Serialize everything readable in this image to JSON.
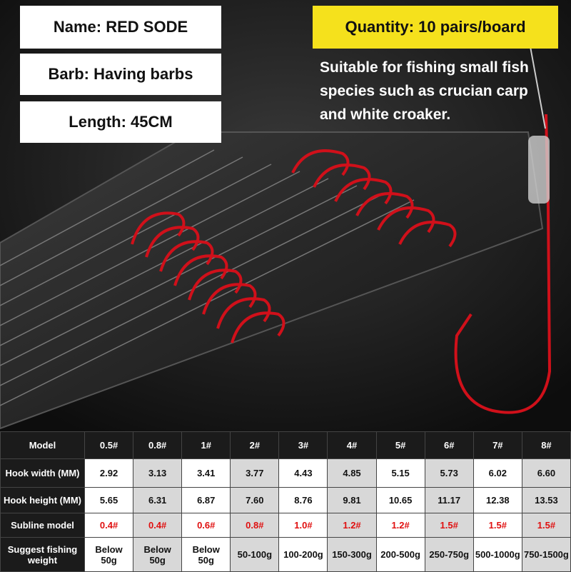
{
  "labels": {
    "name": "Name: RED SODE",
    "barb": "Barb: Having barbs",
    "length": "Length: 45CM",
    "quantity": "Quantity: 10 pairs/board",
    "description": "Suitable for fishing small fish species such as crucian carp and white croaker."
  },
  "table": {
    "header": [
      "Model",
      "0.5#",
      "0.8#",
      "1#",
      "2#",
      "3#",
      "4#",
      "5#",
      "6#",
      "7#",
      "8#"
    ],
    "rows": [
      [
        "Hook width (MM)",
        "2.92",
        "3.13",
        "3.41",
        "3.77",
        "4.43",
        "4.85",
        "5.15",
        "5.73",
        "6.02",
        "6.60"
      ],
      [
        "Hook height (MM)",
        "5.65",
        "6.31",
        "6.87",
        "7.60",
        "8.76",
        "9.81",
        "10.65",
        "11.17",
        "12.38",
        "13.53"
      ],
      [
        "Subline model",
        "0.4#",
        "0.4#",
        "0.6#",
        "0.8#",
        "1.0#",
        "1.2#",
        "1.2#",
        "1.5#",
        "1.5#",
        "1.5#"
      ],
      [
        "Suggest fishing weight",
        "Below 50g",
        "Below 50g",
        "Below 50g",
        "50-100g",
        "100-200g",
        "150-300g",
        "200-500g",
        "250-750g",
        "500-1000g",
        "750-1500g"
      ]
    ]
  }
}
